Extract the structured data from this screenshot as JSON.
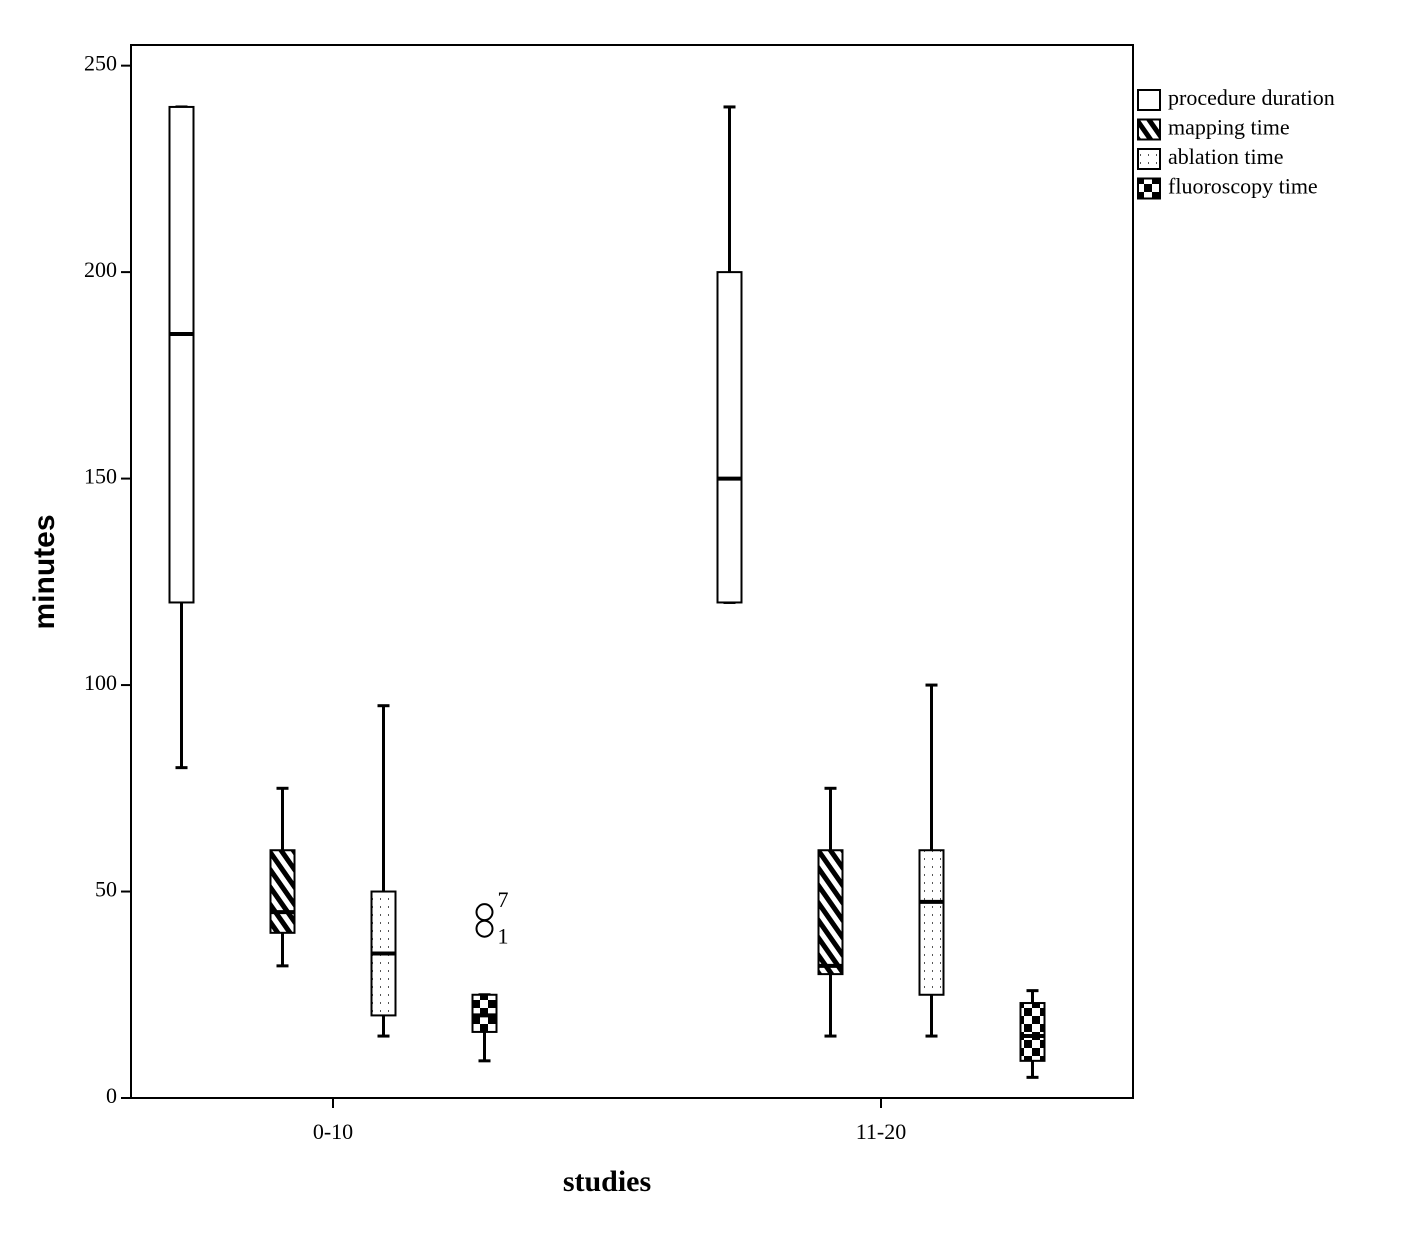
{
  "chart_data": {
    "type": "box",
    "x_label": "studies",
    "y_label": "minutes",
    "categories": [
      "0-10",
      "11-20"
    ],
    "ylim": [
      0,
      255
    ],
    "yticks": [
      0,
      50,
      100,
      150,
      200,
      250
    ],
    "series": [
      {
        "name": "procedure duration",
        "pattern": "blank",
        "color": "#000000",
        "values": [
          [
            80,
            120,
            185,
            240,
            240
          ],
          [
            120,
            120,
            150,
            200,
            240
          ]
        ]
      },
      {
        "name": "mapping time",
        "pattern": "hatch",
        "color": "#000000",
        "values": [
          [
            32,
            40,
            45,
            60,
            75
          ],
          [
            15,
            30,
            32,
            60,
            75
          ]
        ]
      },
      {
        "name": "ablation time",
        "pattern": "dots",
        "color": "#000000",
        "values": [
          [
            15,
            20,
            35,
            50,
            95
          ],
          [
            15,
            25,
            47.5,
            60,
            100
          ]
        ]
      },
      {
        "name": "fluoroscopy time",
        "pattern": "checker",
        "color": "#000000",
        "values": [
          [
            9,
            16,
            20,
            25,
            25
          ],
          [
            5,
            9,
            15,
            23,
            26
          ]
        ]
      }
    ],
    "outliers": [
      {
        "series": 3,
        "category": 0,
        "value": 45,
        "label": "7"
      },
      {
        "series": 3,
        "category": 0,
        "value": 41,
        "label": "1"
      }
    ]
  }
}
